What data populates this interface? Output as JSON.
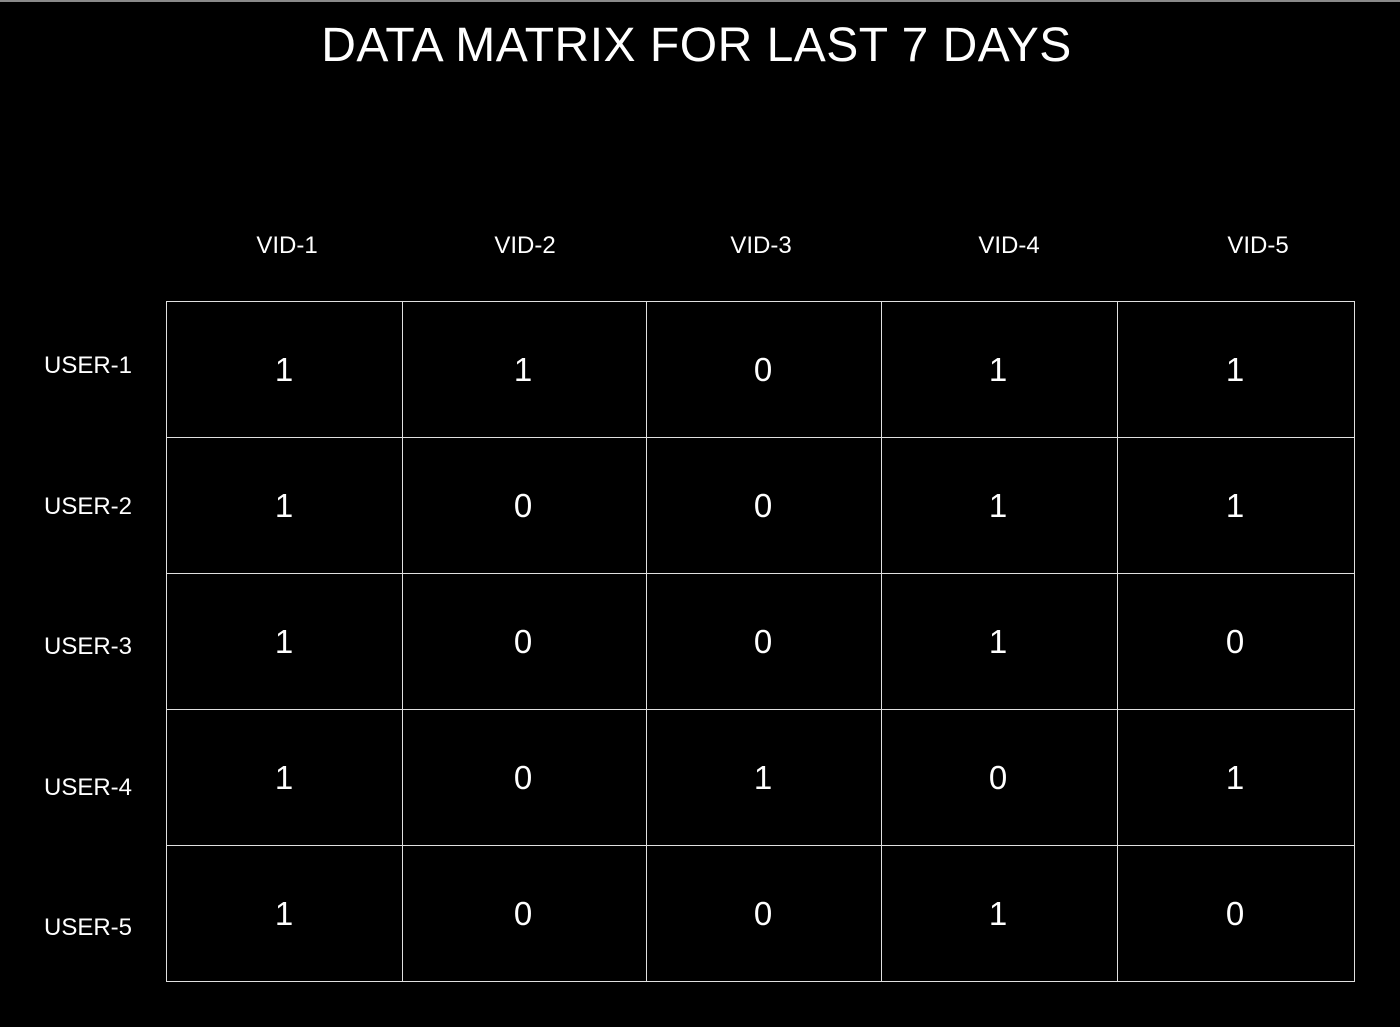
{
  "title": "DATA MATRIX FOR LAST 7 DAYS",
  "columns": [
    "VID-1",
    "VID-2",
    "VID-3",
    "VID-4",
    "VID-5"
  ],
  "rows": [
    {
      "label": "USER-1",
      "values": [
        "1",
        "1",
        "0",
        "1",
        "1"
      ]
    },
    {
      "label": "USER-2",
      "values": [
        "1",
        "0",
        "0",
        "1",
        "1"
      ]
    },
    {
      "label": "USER-3",
      "values": [
        "1",
        "0",
        "0",
        "1",
        "0"
      ]
    },
    {
      "label": "USER-4",
      "values": [
        "1",
        "0",
        "1",
        "0",
        "1"
      ]
    },
    {
      "label": "USER-5",
      "values": [
        "1",
        "0",
        "0",
        "1",
        "0"
      ]
    }
  ],
  "colors": {
    "background": "#000000",
    "text": "#ffffff",
    "grid": "#e0e0e0"
  }
}
